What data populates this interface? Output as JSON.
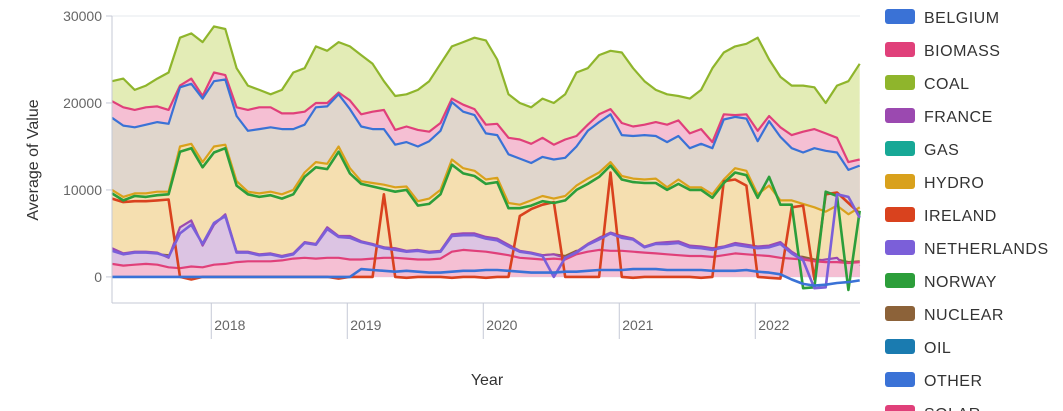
{
  "chart_data": {
    "type": "area",
    "ylabel": "Average of Value",
    "xlabel": "Year",
    "x_tick_labels": [
      "2018",
      "2019",
      "2020",
      "2021",
      "2022"
    ],
    "y_tick_labels": [
      "0",
      "10000",
      "20000",
      "30000"
    ],
    "x_tick_values": [
      2018,
      2019,
      2020,
      2021,
      2022
    ],
    "y_tick_values": [
      0,
      10000,
      20000,
      30000
    ],
    "xlim": [
      2017.27,
      2022.77
    ],
    "ylim": [
      -3000,
      30000
    ],
    "x_start": 2017.27,
    "x_step": 0.0833,
    "legend_position": "right",
    "legend": [
      {
        "name": "BELGIUM",
        "color": "#3a72d6"
      },
      {
        "name": "BIOMASS",
        "color": "#e0407a"
      },
      {
        "name": "COAL",
        "color": "#8fb52c"
      },
      {
        "name": "FRANCE",
        "color": "#9b49b0"
      },
      {
        "name": "GAS",
        "color": "#17a896"
      },
      {
        "name": "HYDRO",
        "color": "#d9a11c"
      },
      {
        "name": "IRELAND",
        "color": "#d9421e"
      },
      {
        "name": "NETHERLANDS",
        "color": "#7b5fd9"
      },
      {
        "name": "NORWAY",
        "color": "#2c9e3a"
      },
      {
        "name": "NUCLEAR",
        "color": "#8c6239"
      },
      {
        "name": "OIL",
        "color": "#1a7bb0"
      },
      {
        "name": "OTHER",
        "color": "#3a72d6"
      },
      {
        "name": "SOLAR",
        "color": "#e0407a"
      }
    ],
    "bands": [
      {
        "name": "COAL",
        "color": "#8fb52c",
        "fill": "#e3ecb6",
        "values": [
          22500,
          22800,
          21500,
          22000,
          22800,
          23500,
          27500,
          28000,
          27000,
          28800,
          28500,
          24000,
          22000,
          21500,
          21000,
          21500,
          23500,
          24000,
          26500,
          26000,
          27000,
          26500,
          25500,
          24500,
          22500,
          20800,
          21000,
          21500,
          22500,
          24500,
          26500,
          27000,
          27500,
          27200,
          25000,
          21000,
          20000,
          19500,
          20500,
          20000,
          21000,
          23500,
          24000,
          25500,
          26000,
          25800,
          24000,
          22500,
          21500,
          21000,
          20800,
          20500,
          21500,
          24000,
          25800,
          26500,
          26800,
          27500,
          25000,
          23000,
          22000,
          22000,
          21800,
          20000,
          22000,
          22500,
          24500
        ]
      },
      {
        "name": "BIOMASS",
        "color": "#e0407a",
        "fill": "#f5bfd3",
        "values": [
          20200,
          19500,
          19200,
          19500,
          19600,
          19200,
          22000,
          22800,
          20800,
          23500,
          23200,
          19500,
          19200,
          19500,
          19500,
          18800,
          18800,
          19000,
          20000,
          20000,
          21200,
          20300,
          18700,
          19000,
          19200,
          16900,
          17300,
          16900,
          16700,
          17700,
          20500,
          19800,
          19300,
          17500,
          17600,
          16000,
          15800,
          15300,
          16000,
          15200,
          15800,
          16200,
          17500,
          18700,
          19300,
          17700,
          17300,
          17500,
          17800,
          17500,
          18000,
          16500,
          17000,
          15500,
          18700,
          18600,
          18700,
          16800,
          18500,
          17200,
          16300,
          16700,
          17000,
          16500,
          16000,
          13200,
          13500
        ]
      },
      {
        "name": "BELGIUM",
        "color": "#3a72d6",
        "fill": "#e0d6cc",
        "values": [
          18300,
          17400,
          17200,
          17500,
          17800,
          17600,
          21800,
          22200,
          20500,
          22500,
          22700,
          18500,
          16800,
          17000,
          17200,
          17000,
          17000,
          17500,
          19500,
          19600,
          21000,
          19300,
          17300,
          17000,
          17000,
          15200,
          15500,
          15000,
          15600,
          16800,
          20100,
          19000,
          18600,
          16500,
          16300,
          14100,
          13600,
          13100,
          13800,
          13500,
          13700,
          15000,
          16800,
          17800,
          18700,
          16300,
          16200,
          16300,
          16200,
          15500,
          16200,
          14800,
          15300,
          14800,
          18100,
          18400,
          18200,
          15600,
          17900,
          16100,
          14800,
          14300,
          14800,
          14500,
          14300,
          12300,
          12800
        ]
      },
      {
        "name": "GAS",
        "color": "#17a896",
        "fill": "#b1e3dd",
        "values": [
          9700,
          8300,
          9000,
          8800,
          9000,
          9500,
          14000,
          14500,
          12000,
          13800,
          14500,
          10200,
          9200,
          8800,
          9200,
          8700,
          9200,
          11000,
          12200,
          12000,
          14000,
          11500,
          10500,
          10200,
          9800,
          9500,
          9800,
          7800,
          8000,
          9200,
          12600,
          11600,
          11300,
          10300,
          10600,
          7400,
          7700,
          8000,
          8400,
          8300,
          8600,
          9700,
          10300,
          11100,
          12400,
          10800,
          10600,
          10400,
          10500,
          9700,
          10500,
          9700,
          9700,
          8700,
          10500,
          11700,
          11300,
          8700,
          9200,
          7600,
          8000,
          7700,
          7300,
          6800,
          7600,
          6500,
          7200
        ]
      },
      {
        "name": "HYDRO",
        "color": "#d9a11c",
        "fill": "#f5dfb0",
        "values": [
          10000,
          9200,
          9600,
          9600,
          9800,
          9800,
          15000,
          15300,
          13200,
          15000,
          15200,
          11000,
          9800,
          9600,
          9800,
          9500,
          10000,
          12000,
          13200,
          13000,
          15000,
          12500,
          11000,
          10800,
          10600,
          10300,
          10400,
          8700,
          9000,
          10000,
          13500,
          12500,
          12200,
          11200,
          11400,
          8500,
          8300,
          8800,
          9300,
          9000,
          9300,
          10500,
          11300,
          12000,
          13200,
          11600,
          11300,
          11200,
          11300,
          10300,
          11200,
          10300,
          10300,
          9500,
          11200,
          12500,
          12200,
          9500,
          10500,
          8800,
          8800,
          8400,
          8000,
          7500,
          8200,
          7200,
          8000
        ]
      },
      {
        "name": "NUCLEAR",
        "color": "#8c6239",
        "fill": "#ead7c7",
        "values": [
          2200,
          1900,
          2100,
          2300,
          2600,
          2500,
          2900,
          3600,
          2800,
          3200,
          3800,
          2900,
          2700,
          2300,
          2500,
          2200,
          2400,
          3100,
          3200,
          3100,
          3400,
          3300,
          3600,
          3600,
          3400,
          2900,
          2900,
          2700,
          2400,
          2500,
          3200,
          3400,
          3300,
          3300,
          3200,
          3000,
          2800,
          2700,
          2500,
          2600,
          2400,
          3000,
          3000,
          3200,
          3800,
          3700,
          3500,
          3300,
          3500,
          3600,
          3300,
          3000,
          2900,
          2700,
          3200,
          3600,
          3500,
          3000,
          2600,
          2400,
          2400,
          2300,
          2000,
          1900,
          2000,
          1700,
          1800
        ]
      },
      {
        "name": "FRANCE",
        "color": "#9b49b0",
        "fill": "#dcc4e3",
        "values": [
          3300,
          2700,
          2900,
          2900,
          2800,
          2200,
          5700,
          6500,
          3600,
          6000,
          7200,
          2900,
          2900,
          2600,
          2700,
          2400,
          2700,
          4000,
          3800,
          5700,
          4700,
          4700,
          4100,
          3800,
          3400,
          3300,
          3000,
          3100,
          2900,
          3000,
          4900,
          5000,
          5000,
          4600,
          4400,
          3700,
          3000,
          2800,
          2500,
          2600,
          2200,
          2900,
          3800,
          4500,
          5100,
          4700,
          4400,
          3500,
          3900,
          4000,
          4100,
          3600,
          3500,
          3300,
          3500,
          3900,
          3700,
          3500,
          3600,
          4000,
          2900,
          2100,
          1800,
          2000,
          2200,
          800,
          1400
        ]
      },
      {
        "name": "SOLAR",
        "color": "#e0407a",
        "fill": "#f5bfd3",
        "values": [
          1500,
          1300,
          1400,
          1500,
          1400,
          1100,
          1000,
          1200,
          1100,
          1400,
          1500,
          1700,
          1800,
          1800,
          1800,
          1900,
          2100,
          2200,
          2100,
          2200,
          2200,
          2000,
          2000,
          2100,
          2200,
          2200,
          2100,
          2000,
          2000,
          2100,
          2900,
          3100,
          3000,
          2900,
          2700,
          2500,
          2200,
          2100,
          2000,
          2100,
          2000,
          2600,
          2900,
          3100,
          3000,
          3000,
          2900,
          2800,
          2700,
          2600,
          2500,
          2400,
          2400,
          2300,
          2500,
          2700,
          2600,
          2500,
          2400,
          2200,
          2100,
          2000,
          1800,
          1700,
          1700,
          1600,
          1700
        ]
      }
    ],
    "lines": [
      {
        "name": "IRELAND",
        "color": "#d9421e",
        "values": [
          9000,
          8600,
          8700,
          8700,
          8800,
          8900,
          0,
          -300,
          0,
          0,
          0,
          0,
          0,
          0,
          0,
          0,
          0,
          0,
          0,
          0,
          -200,
          0,
          0,
          0,
          9500,
          0,
          -100,
          0,
          0,
          0,
          -100,
          0,
          0,
          -100,
          0,
          0,
          7000,
          7800,
          8300,
          8600,
          0,
          0,
          0,
          0,
          12000,
          0,
          -100,
          0,
          0,
          0,
          0,
          0,
          -100,
          0,
          11000,
          11200,
          10500,
          0,
          -100,
          -200,
          8000,
          8200,
          -300,
          9500,
          9700,
          8500,
          7300
        ]
      },
      {
        "name": "NORWAY",
        "color": "#2c9e3a",
        "values": [
          9600,
          8800,
          9300,
          9200,
          9400,
          9500,
          14400,
          14800,
          12600,
          14300,
          14800,
          10500,
          9500,
          9200,
          9400,
          9000,
          9500,
          11500,
          12600,
          12400,
          14400,
          11900,
          10700,
          10400,
          10100,
          9800,
          10000,
          8200,
          8400,
          9500,
          12900,
          11900,
          11600,
          10700,
          10900,
          7900,
          7900,
          8200,
          8700,
          8500,
          8800,
          10000,
          10700,
          11500,
          12800,
          11200,
          10900,
          10800,
          10800,
          10000,
          10700,
          10000,
          10000,
          9100,
          10800,
          12000,
          11700,
          9100,
          11500,
          8300,
          8300,
          -1300,
          -1200,
          9800,
          9300,
          -1500,
          7600
        ]
      },
      {
        "name": "NETHERLANDS",
        "color": "#7b5fd9",
        "values": [
          3000,
          2600,
          2800,
          2800,
          2700,
          2300,
          5000,
          6000,
          3800,
          6200,
          7000,
          2800,
          2800,
          2500,
          2600,
          2300,
          2600,
          3900,
          3700,
          5500,
          4600,
          4500,
          4000,
          3700,
          3300,
          3100,
          2900,
          3000,
          2800,
          2900,
          4700,
          4800,
          4800,
          4400,
          4200,
          3500,
          2900,
          2700,
          2400,
          0,
          2200,
          2800,
          3700,
          4300,
          5000,
          4500,
          4300,
          3400,
          3800,
          3800,
          3900,
          3400,
          3300,
          3100,
          3400,
          3700,
          3500,
          3300,
          3400,
          3800,
          2700,
          1900,
          -1300,
          -1200,
          9500,
          9200,
          6800
        ]
      },
      {
        "name": "OTHER",
        "color": "#3a72d6",
        "values": [
          0,
          0,
          0,
          0,
          0,
          0,
          0,
          0,
          0,
          0,
          0,
          0,
          0,
          0,
          0,
          0,
          0,
          0,
          0,
          0,
          0,
          0,
          900,
          800,
          700,
          600,
          700,
          600,
          500,
          500,
          600,
          700,
          700,
          800,
          800,
          700,
          600,
          500,
          500,
          500,
          600,
          600,
          700,
          800,
          800,
          800,
          900,
          900,
          900,
          800,
          800,
          800,
          800,
          700,
          700,
          700,
          800,
          600,
          500,
          300,
          -300,
          -800,
          -1000,
          -900,
          -700,
          -600,
          -400
        ]
      }
    ]
  }
}
